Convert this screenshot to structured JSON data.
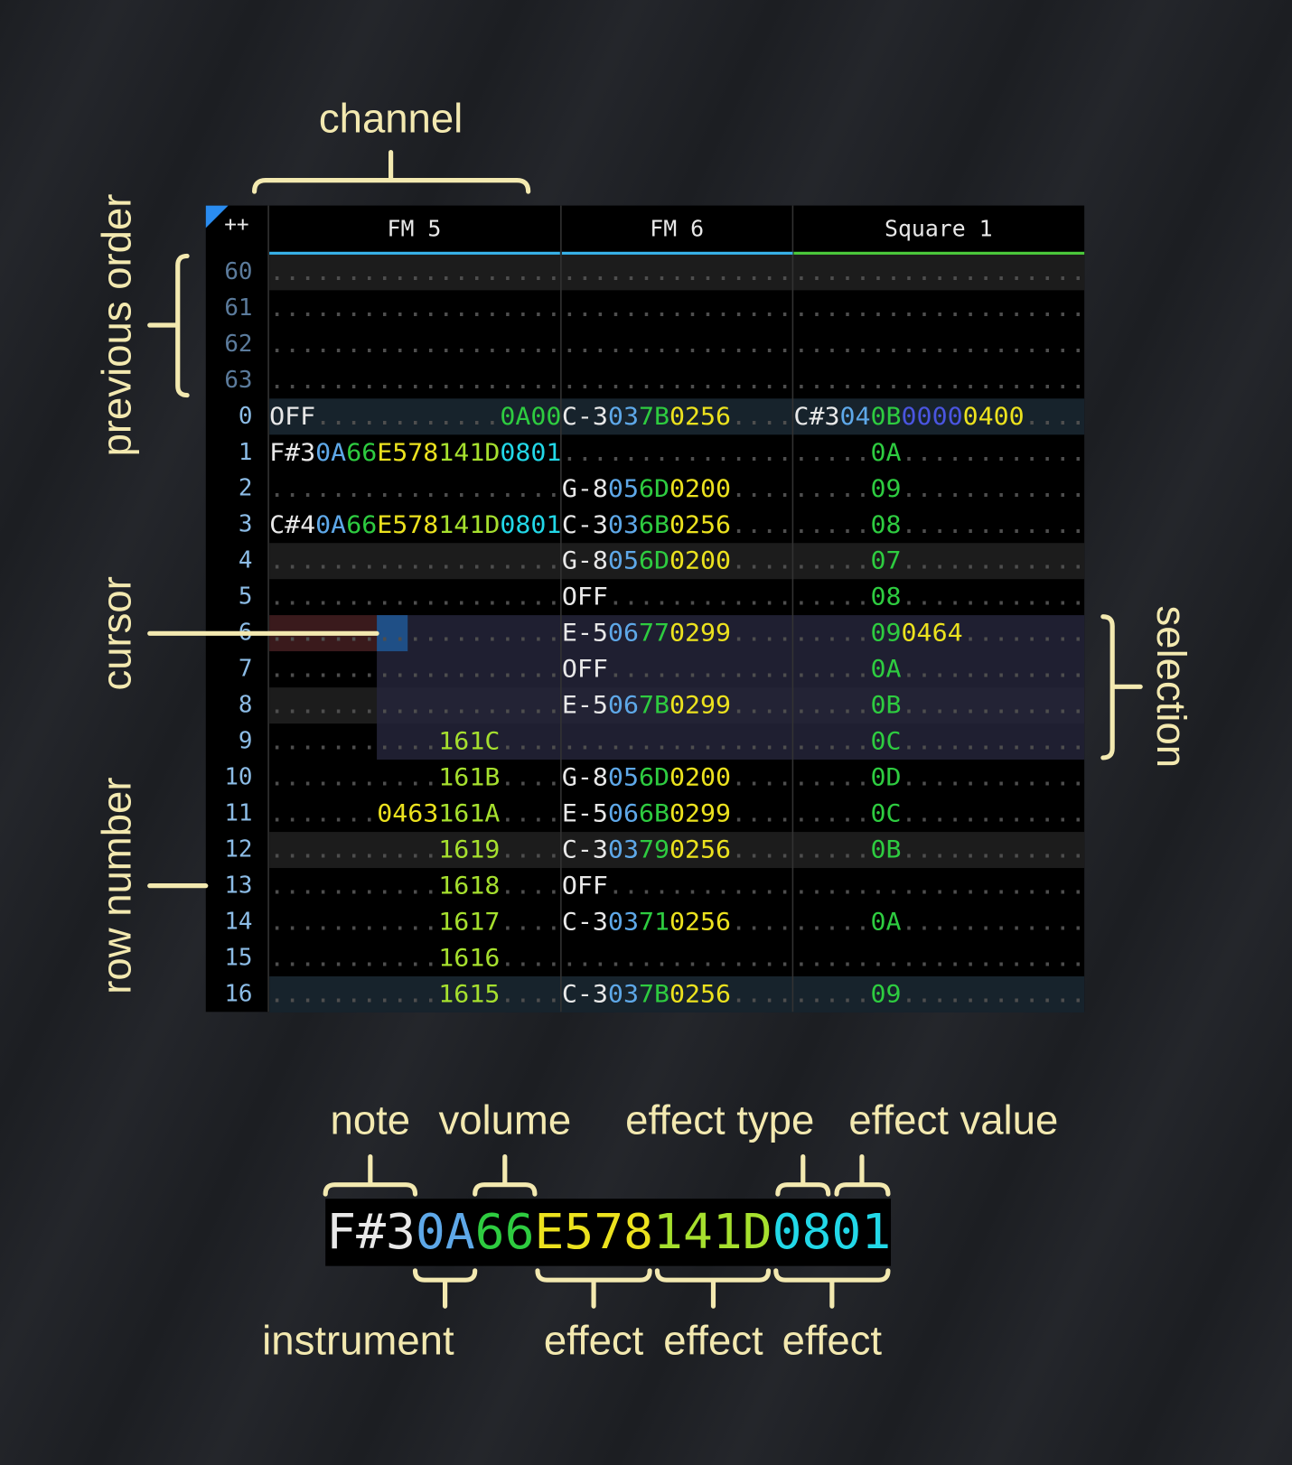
{
  "annotations": {
    "channel": "channel",
    "previous_order": "previous order",
    "cursor": "cursor",
    "row_number": "row number",
    "selection": "selection"
  },
  "corner": "++",
  "channels": [
    {
      "name": "FM 5",
      "color": "#38b4ec"
    },
    {
      "name": "FM 6",
      "color": "#38b4ec"
    },
    {
      "name": "Square 1",
      "color": "#4ccc3c"
    }
  ],
  "colors": {
    "n": "#e8e8e8",
    "i": "#5ea8e8",
    "v": "#2ecc40",
    "y": "#ece21e",
    "l": "#a6e02e",
    "c": "#22d8e8",
    "p": "#4a55e0",
    "d": "#4e4e4e"
  },
  "rows": [
    {
      "number": "60",
      "cells": [
        [
          [
            "...................",
            "d"
          ]
        ],
        [
          [
            "...............",
            "d"
          ]
        ],
        [
          [
            "...................",
            "d"
          ]
        ]
      ]
    },
    {
      "number": "61",
      "cells": [
        [
          [
            "...................",
            "d"
          ]
        ],
        [
          [
            "...............",
            "d"
          ]
        ],
        [
          [
            "...................",
            "d"
          ]
        ]
      ]
    },
    {
      "number": "62",
      "cells": [
        [
          [
            "...................",
            "d"
          ]
        ],
        [
          [
            "...............",
            "d"
          ]
        ],
        [
          [
            "...................",
            "d"
          ]
        ]
      ]
    },
    {
      "number": "63",
      "cells": [
        [
          [
            "...................",
            "d"
          ]
        ],
        [
          [
            "...............",
            "d"
          ]
        ],
        [
          [
            "...................",
            "d"
          ]
        ]
      ]
    },
    {
      "number": "0",
      "cells": [
        [
          [
            "OFF",
            "n"
          ],
          [
            "............",
            "d"
          ],
          [
            "0A00",
            "v"
          ]
        ],
        [
          [
            "C-3",
            "n"
          ],
          [
            "03",
            "i"
          ],
          [
            "7B",
            "v"
          ],
          [
            "0256",
            "y"
          ],
          [
            "....",
            "d"
          ]
        ],
        [
          [
            "C#3",
            "n"
          ],
          [
            "04",
            "i"
          ],
          [
            "0B",
            "v"
          ],
          [
            "0000",
            "p"
          ],
          [
            "0400",
            "y"
          ],
          [
            "....",
            "d"
          ]
        ]
      ]
    },
    {
      "number": "1",
      "cells": [
        [
          [
            "F#3",
            "n"
          ],
          [
            "0A",
            "i"
          ],
          [
            "66",
            "v"
          ],
          [
            "E578",
            "y"
          ],
          [
            "141D",
            "l"
          ],
          [
            "0801",
            "c"
          ]
        ],
        [
          [
            "...............",
            "d"
          ]
        ],
        [
          [
            ".....",
            "d"
          ],
          [
            "0A",
            "v"
          ],
          [
            "............",
            "d"
          ]
        ]
      ]
    },
    {
      "number": "2",
      "cells": [
        [
          [
            "...................",
            "d"
          ]
        ],
        [
          [
            "G-8",
            "n"
          ],
          [
            "05",
            "i"
          ],
          [
            "6D",
            "v"
          ],
          [
            "0200",
            "y"
          ],
          [
            "....",
            "d"
          ]
        ],
        [
          [
            ".....",
            "d"
          ],
          [
            "09",
            "v"
          ],
          [
            "............",
            "d"
          ]
        ]
      ]
    },
    {
      "number": "3",
      "cells": [
        [
          [
            "C#4",
            "n"
          ],
          [
            "0A",
            "i"
          ],
          [
            "66",
            "v"
          ],
          [
            "E578",
            "y"
          ],
          [
            "141D",
            "l"
          ],
          [
            "0801",
            "c"
          ]
        ],
        [
          [
            "C-3",
            "n"
          ],
          [
            "03",
            "i"
          ],
          [
            "6B",
            "v"
          ],
          [
            "0256",
            "y"
          ],
          [
            "....",
            "d"
          ]
        ],
        [
          [
            ".....",
            "d"
          ],
          [
            "08",
            "v"
          ],
          [
            "............",
            "d"
          ]
        ]
      ]
    },
    {
      "number": "4",
      "cells": [
        [
          [
            "...................",
            "d"
          ]
        ],
        [
          [
            "G-8",
            "n"
          ],
          [
            "05",
            "i"
          ],
          [
            "6D",
            "v"
          ],
          [
            "0200",
            "y"
          ],
          [
            "....",
            "d"
          ]
        ],
        [
          [
            ".....",
            "d"
          ],
          [
            "07",
            "v"
          ],
          [
            "............",
            "d"
          ]
        ]
      ]
    },
    {
      "number": "5",
      "cells": [
        [
          [
            "...................",
            "d"
          ]
        ],
        [
          [
            "OFF",
            "n"
          ],
          [
            "............",
            "d"
          ]
        ],
        [
          [
            ".....",
            "d"
          ],
          [
            "08",
            "v"
          ],
          [
            "............",
            "d"
          ]
        ]
      ]
    },
    {
      "number": "6",
      "cells": [
        [
          [
            "...................",
            "d"
          ]
        ],
        [
          [
            "E-5",
            "n"
          ],
          [
            "06",
            "i"
          ],
          [
            "77",
            "v"
          ],
          [
            "0299",
            "y"
          ],
          [
            "....",
            "d"
          ]
        ],
        [
          [
            ".....",
            "d"
          ],
          [
            "09",
            "v"
          ],
          [
            "0464",
            "y"
          ],
          [
            "........",
            "d"
          ]
        ]
      ]
    },
    {
      "number": "7",
      "cells": [
        [
          [
            "...................",
            "d"
          ]
        ],
        [
          [
            "OFF",
            "n"
          ],
          [
            "............",
            "d"
          ]
        ],
        [
          [
            ".....",
            "d"
          ],
          [
            "0A",
            "v"
          ],
          [
            "............",
            "d"
          ]
        ]
      ]
    },
    {
      "number": "8",
      "cells": [
        [
          [
            "...................",
            "d"
          ]
        ],
        [
          [
            "E-5",
            "n"
          ],
          [
            "06",
            "i"
          ],
          [
            "7B",
            "v"
          ],
          [
            "0299",
            "y"
          ],
          [
            "....",
            "d"
          ]
        ],
        [
          [
            ".....",
            "d"
          ],
          [
            "0B",
            "v"
          ],
          [
            "............",
            "d"
          ]
        ]
      ]
    },
    {
      "number": "9",
      "cells": [
        [
          [
            "...........",
            "d"
          ],
          [
            "161C",
            "l"
          ],
          [
            "....",
            "d"
          ]
        ],
        [
          [
            "...............",
            "d"
          ]
        ],
        [
          [
            ".....",
            "d"
          ],
          [
            "0C",
            "v"
          ],
          [
            "............",
            "d"
          ]
        ]
      ]
    },
    {
      "number": "10",
      "cells": [
        [
          [
            "...........",
            "d"
          ],
          [
            "161B",
            "l"
          ],
          [
            "....",
            "d"
          ]
        ],
        [
          [
            "G-8",
            "n"
          ],
          [
            "05",
            "i"
          ],
          [
            "6D",
            "v"
          ],
          [
            "0200",
            "y"
          ],
          [
            "....",
            "d"
          ]
        ],
        [
          [
            ".....",
            "d"
          ],
          [
            "0D",
            "v"
          ],
          [
            "............",
            "d"
          ]
        ]
      ]
    },
    {
      "number": "11",
      "cells": [
        [
          [
            ".......",
            "d"
          ],
          [
            "0463",
            "y"
          ],
          [
            "161A",
            "l"
          ],
          [
            "....",
            "d"
          ]
        ],
        [
          [
            "E-5",
            "n"
          ],
          [
            "06",
            "i"
          ],
          [
            "6B",
            "v"
          ],
          [
            "0299",
            "y"
          ],
          [
            "....",
            "d"
          ]
        ],
        [
          [
            ".....",
            "d"
          ],
          [
            "0C",
            "v"
          ],
          [
            "............",
            "d"
          ]
        ]
      ]
    },
    {
      "number": "12",
      "cells": [
        [
          [
            "...........",
            "d"
          ],
          [
            "1619",
            "l"
          ],
          [
            "....",
            "d"
          ]
        ],
        [
          [
            "C-3",
            "n"
          ],
          [
            "03",
            "i"
          ],
          [
            "79",
            "v"
          ],
          [
            "0256",
            "y"
          ],
          [
            "....",
            "d"
          ]
        ],
        [
          [
            ".....",
            "d"
          ],
          [
            "0B",
            "v"
          ],
          [
            "............",
            "d"
          ]
        ]
      ]
    },
    {
      "number": "13",
      "cells": [
        [
          [
            "...........",
            "d"
          ],
          [
            "1618",
            "l"
          ],
          [
            "....",
            "d"
          ]
        ],
        [
          [
            "OFF",
            "n"
          ],
          [
            "............",
            "d"
          ]
        ],
        [
          [
            "...................",
            "d"
          ]
        ]
      ]
    },
    {
      "number": "14",
      "cells": [
        [
          [
            "...........",
            "d"
          ],
          [
            "1617",
            "l"
          ],
          [
            "....",
            "d"
          ]
        ],
        [
          [
            "C-3",
            "n"
          ],
          [
            "03",
            "i"
          ],
          [
            "71",
            "v"
          ],
          [
            "0256",
            "y"
          ],
          [
            "....",
            "d"
          ]
        ],
        [
          [
            ".....",
            "d"
          ],
          [
            "0A",
            "v"
          ],
          [
            "............",
            "d"
          ]
        ]
      ]
    },
    {
      "number": "15",
      "cells": [
        [
          [
            "...........",
            "d"
          ],
          [
            "1616",
            "l"
          ],
          [
            "....",
            "d"
          ]
        ],
        [
          [
            "...............",
            "d"
          ]
        ],
        [
          [
            "...................",
            "d"
          ]
        ]
      ]
    },
    {
      "number": "16",
      "cells": [
        [
          [
            "...........",
            "d"
          ],
          [
            "1615",
            "l"
          ],
          [
            "....",
            "d"
          ]
        ],
        [
          [
            "C-3",
            "n"
          ],
          [
            "03",
            "i"
          ],
          [
            "7B",
            "v"
          ],
          [
            "0256",
            "y"
          ],
          [
            "....",
            "d"
          ]
        ],
        [
          [
            ".....",
            "d"
          ],
          [
            "09",
            "v"
          ],
          [
            "............",
            "d"
          ]
        ]
      ]
    }
  ],
  "legend": {
    "example": [
      [
        "F#3",
        "n"
      ],
      [
        "0A",
        "i"
      ],
      [
        "66",
        "v"
      ],
      [
        "E578",
        "y"
      ],
      [
        "141D",
        "l"
      ],
      [
        "0801",
        "c"
      ]
    ],
    "top_labels": [
      "note",
      "volume",
      "effect type",
      "effect value"
    ],
    "bottom_labels": [
      "instrument",
      "effect",
      "effect",
      "effect"
    ]
  }
}
